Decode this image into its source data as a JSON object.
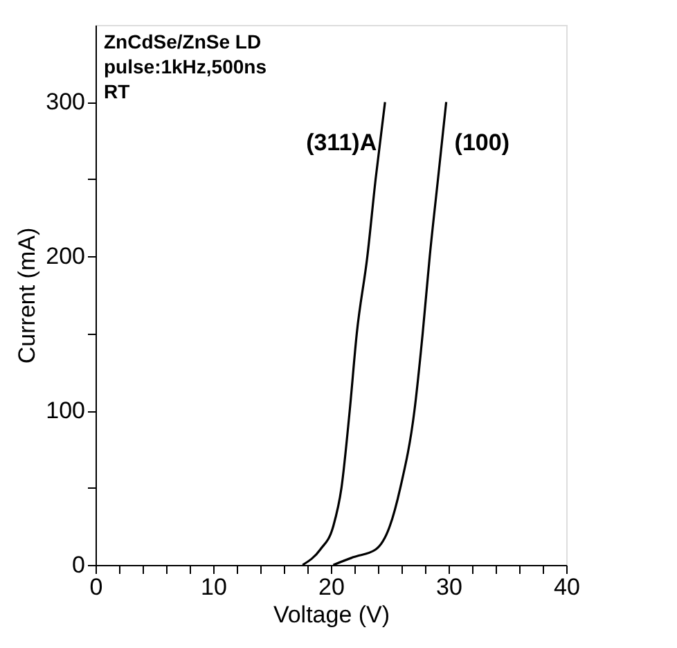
{
  "chart_data": {
    "type": "line",
    "xlabel": "Voltage (V)",
    "ylabel": "Current (mA)",
    "xlim": [
      0,
      40
    ],
    "ylim": [
      0,
      350
    ],
    "xticks": [
      0,
      {
        "value": 2,
        "label": null
      },
      {
        "value": 4,
        "label": null
      },
      {
        "value": 6,
        "label": null
      },
      {
        "value": 8,
        "label": null
      },
      10,
      {
        "value": 12,
        "label": null
      },
      {
        "value": 14,
        "label": null
      },
      {
        "value": 16,
        "label": null
      },
      {
        "value": 18,
        "label": null
      },
      20,
      {
        "value": 22,
        "label": null
      },
      {
        "value": 24,
        "label": null
      },
      {
        "value": 26,
        "label": null
      },
      {
        "value": 28,
        "label": null
      },
      30,
      {
        "value": 32,
        "label": null
      },
      {
        "value": 34,
        "label": null
      },
      {
        "value": 36,
        "label": null
      },
      {
        "value": 38,
        "label": null
      },
      40
    ],
    "yticks": [
      0,
      {
        "value": 50,
        "label": null
      },
      100,
      {
        "value": 150,
        "label": null
      },
      200,
      {
        "value": 250,
        "label": null
      },
      300
    ],
    "annotations": [
      "ZnCdSe/ZnSe  LD",
      "pulse:1kHz,500ns",
      "RT"
    ],
    "grid": false,
    "marker": "none",
    "line_style": "solid",
    "series": [
      {
        "name": "(311)A",
        "color": "#000000",
        "x": [
          17.6,
          19.1,
          20.2,
          20.9,
          21.6,
          22.2,
          23.1,
          23.8,
          24.6
        ],
        "values": [
          0,
          10,
          25,
          50,
          100,
          150,
          200,
          250,
          300
        ]
      },
      {
        "name": "(100)",
        "color": "#000000",
        "x": [
          20.2,
          21.9,
          23.8,
          25.0,
          25.9,
          27.1,
          27.8,
          28.4,
          29.1,
          29.8
        ],
        "values": [
          0,
          5,
          10,
          25,
          50,
          100,
          150,
          200,
          250,
          300
        ]
      }
    ]
  }
}
